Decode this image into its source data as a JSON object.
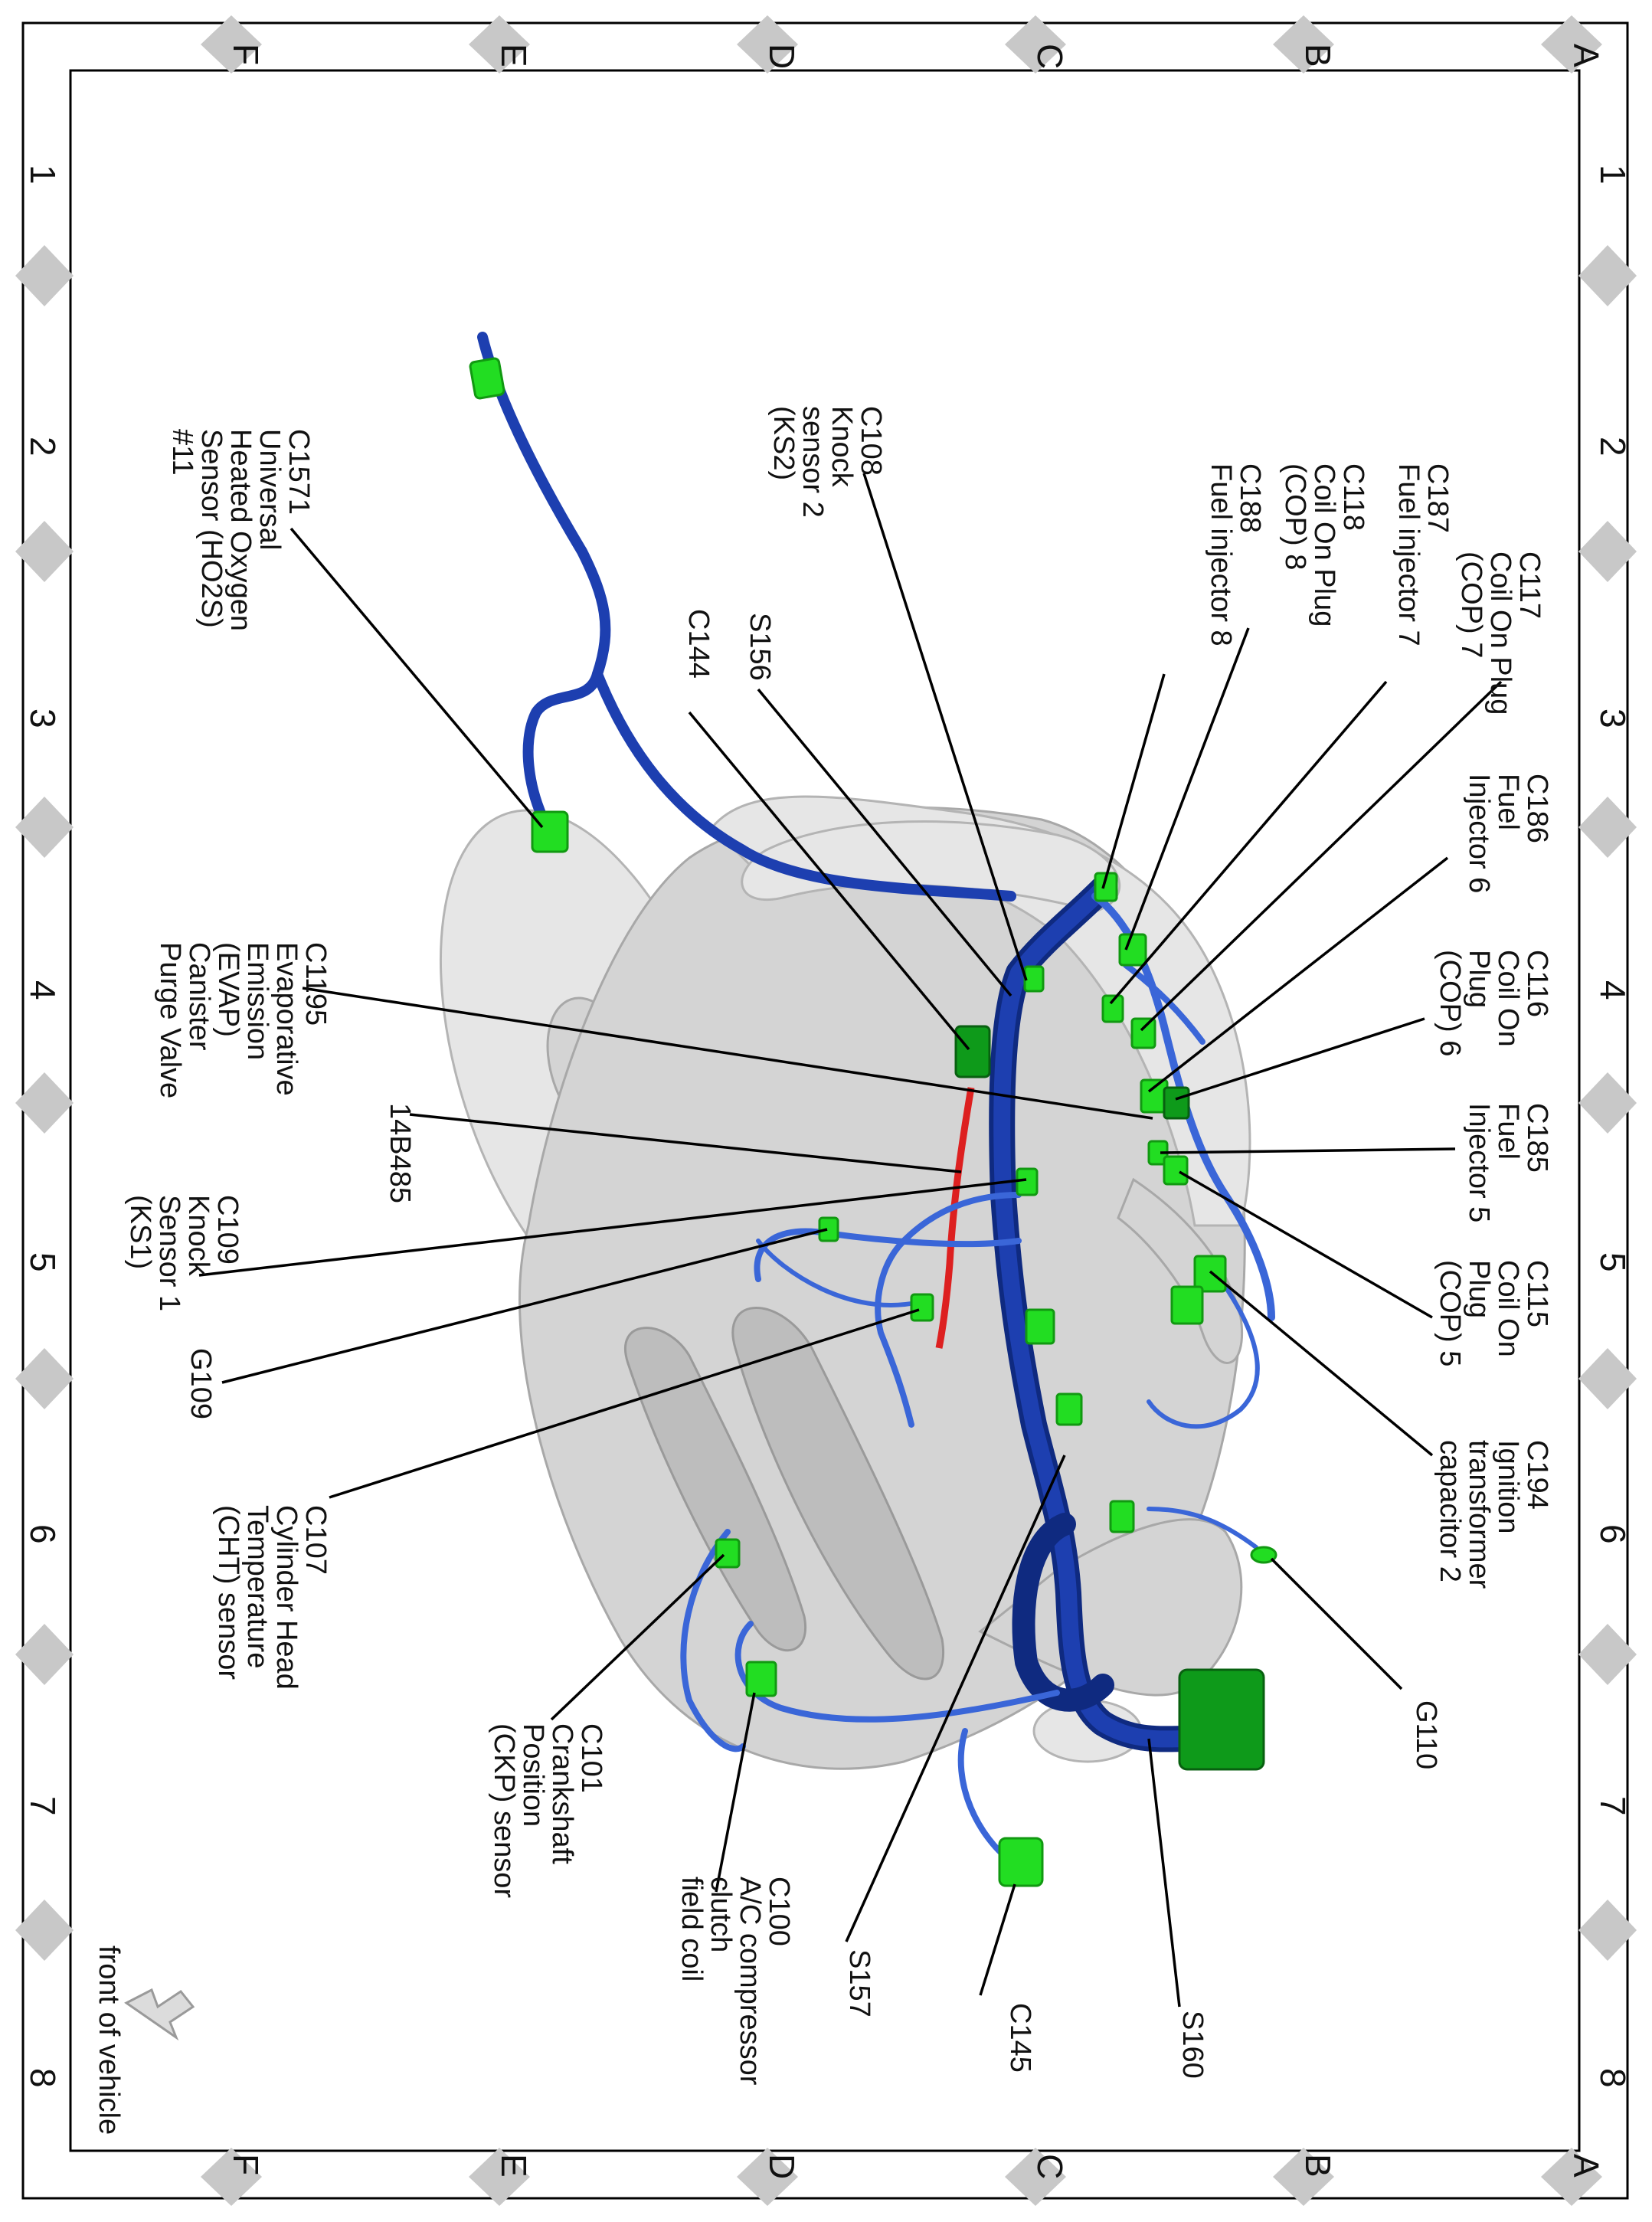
{
  "grid": {
    "columns": [
      "1",
      "2",
      "3",
      "4",
      "5",
      "6",
      "7",
      "8"
    ],
    "rows": [
      "A",
      "B",
      "C",
      "D",
      "E",
      "F"
    ]
  },
  "callouts": {
    "c1571": [
      "C1571",
      "Universal",
      "Heated Oxygen",
      "Sensor (HO2S)",
      "#11"
    ],
    "c108": [
      "C108",
      "Knock",
      "sensor 2",
      "(KS2)"
    ],
    "c188": [
      "C188",
      "Fuel injector 8"
    ],
    "c118": [
      "C118",
      "Coil On Plug",
      "(COP) 8"
    ],
    "c187": [
      "C187",
      "Fuel injector 7"
    ],
    "c117": [
      "C117",
      "Coil On Plug",
      "(COP) 7"
    ],
    "s156": [
      "S156"
    ],
    "c144": [
      "C144"
    ],
    "c186": [
      "C186",
      "Fuel",
      "Injector 6"
    ],
    "c116": [
      "C116",
      "Coil On",
      "Plug",
      "(COP) 6"
    ],
    "c1195": [
      "C1195",
      "Evaporative",
      "Emission",
      "(EVAP)",
      "Canister",
      "Purge Valve"
    ],
    "n14b485": [
      "14B485"
    ],
    "c185": [
      "C185",
      "Fuel",
      "Injector 5"
    ],
    "c109": [
      "C109",
      "Knock",
      "Sensor 1",
      "(KS1)"
    ],
    "c115": [
      "C115",
      "Coil On",
      "Plug",
      "(COP) 5"
    ],
    "g109": [
      "G109"
    ],
    "c194": [
      "C194",
      "Ignition",
      "transformer",
      "capacitor 2"
    ],
    "c107": [
      "C107",
      "Cylinder Head",
      "Temperature",
      "(CHT) sensor"
    ],
    "g110": [
      "G110"
    ],
    "c101": [
      "C101",
      "Crankshaft",
      "Position",
      "(CKP) sensor"
    ],
    "c100": [
      "C100",
      "A/C compressor",
      "clutch",
      "field coil"
    ],
    "s157": [
      "S157"
    ],
    "c145": [
      "C145"
    ],
    "s160": [
      "S160"
    ]
  },
  "orientation": {
    "label": "front of vehicle",
    "icon": "direction-arrow-icon"
  },
  "colors": {
    "harness": "#1d3fb0",
    "harness_dark": "#0f2a80",
    "harness_light": "#3a66d8",
    "connector": "#22dd22",
    "connector_dark": "#0e9a1a",
    "wire_red": "#dd2020",
    "engine": "#d4d4d4",
    "grid_marker": "#c8c8c8"
  }
}
